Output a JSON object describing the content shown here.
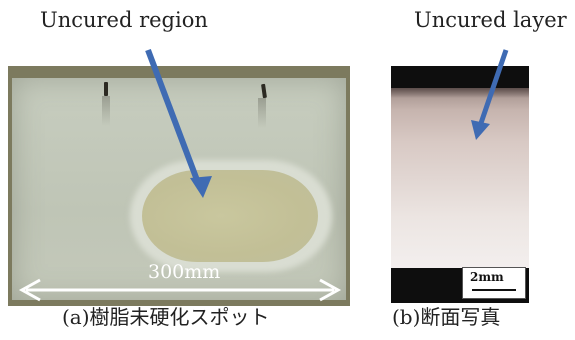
{
  "labels": {
    "uncured_region": "Uncured region",
    "uncured_layer": "Uncured layer"
  },
  "photo_a": {
    "dimension": "300mm",
    "caption": "(a)樹脂未硬化スポット"
  },
  "photo_b": {
    "scale": "2mm",
    "caption": "(b)断面写真"
  },
  "colors": {
    "arrow": "#3f6bb3",
    "dimension_arrow": "#ffffff"
  }
}
